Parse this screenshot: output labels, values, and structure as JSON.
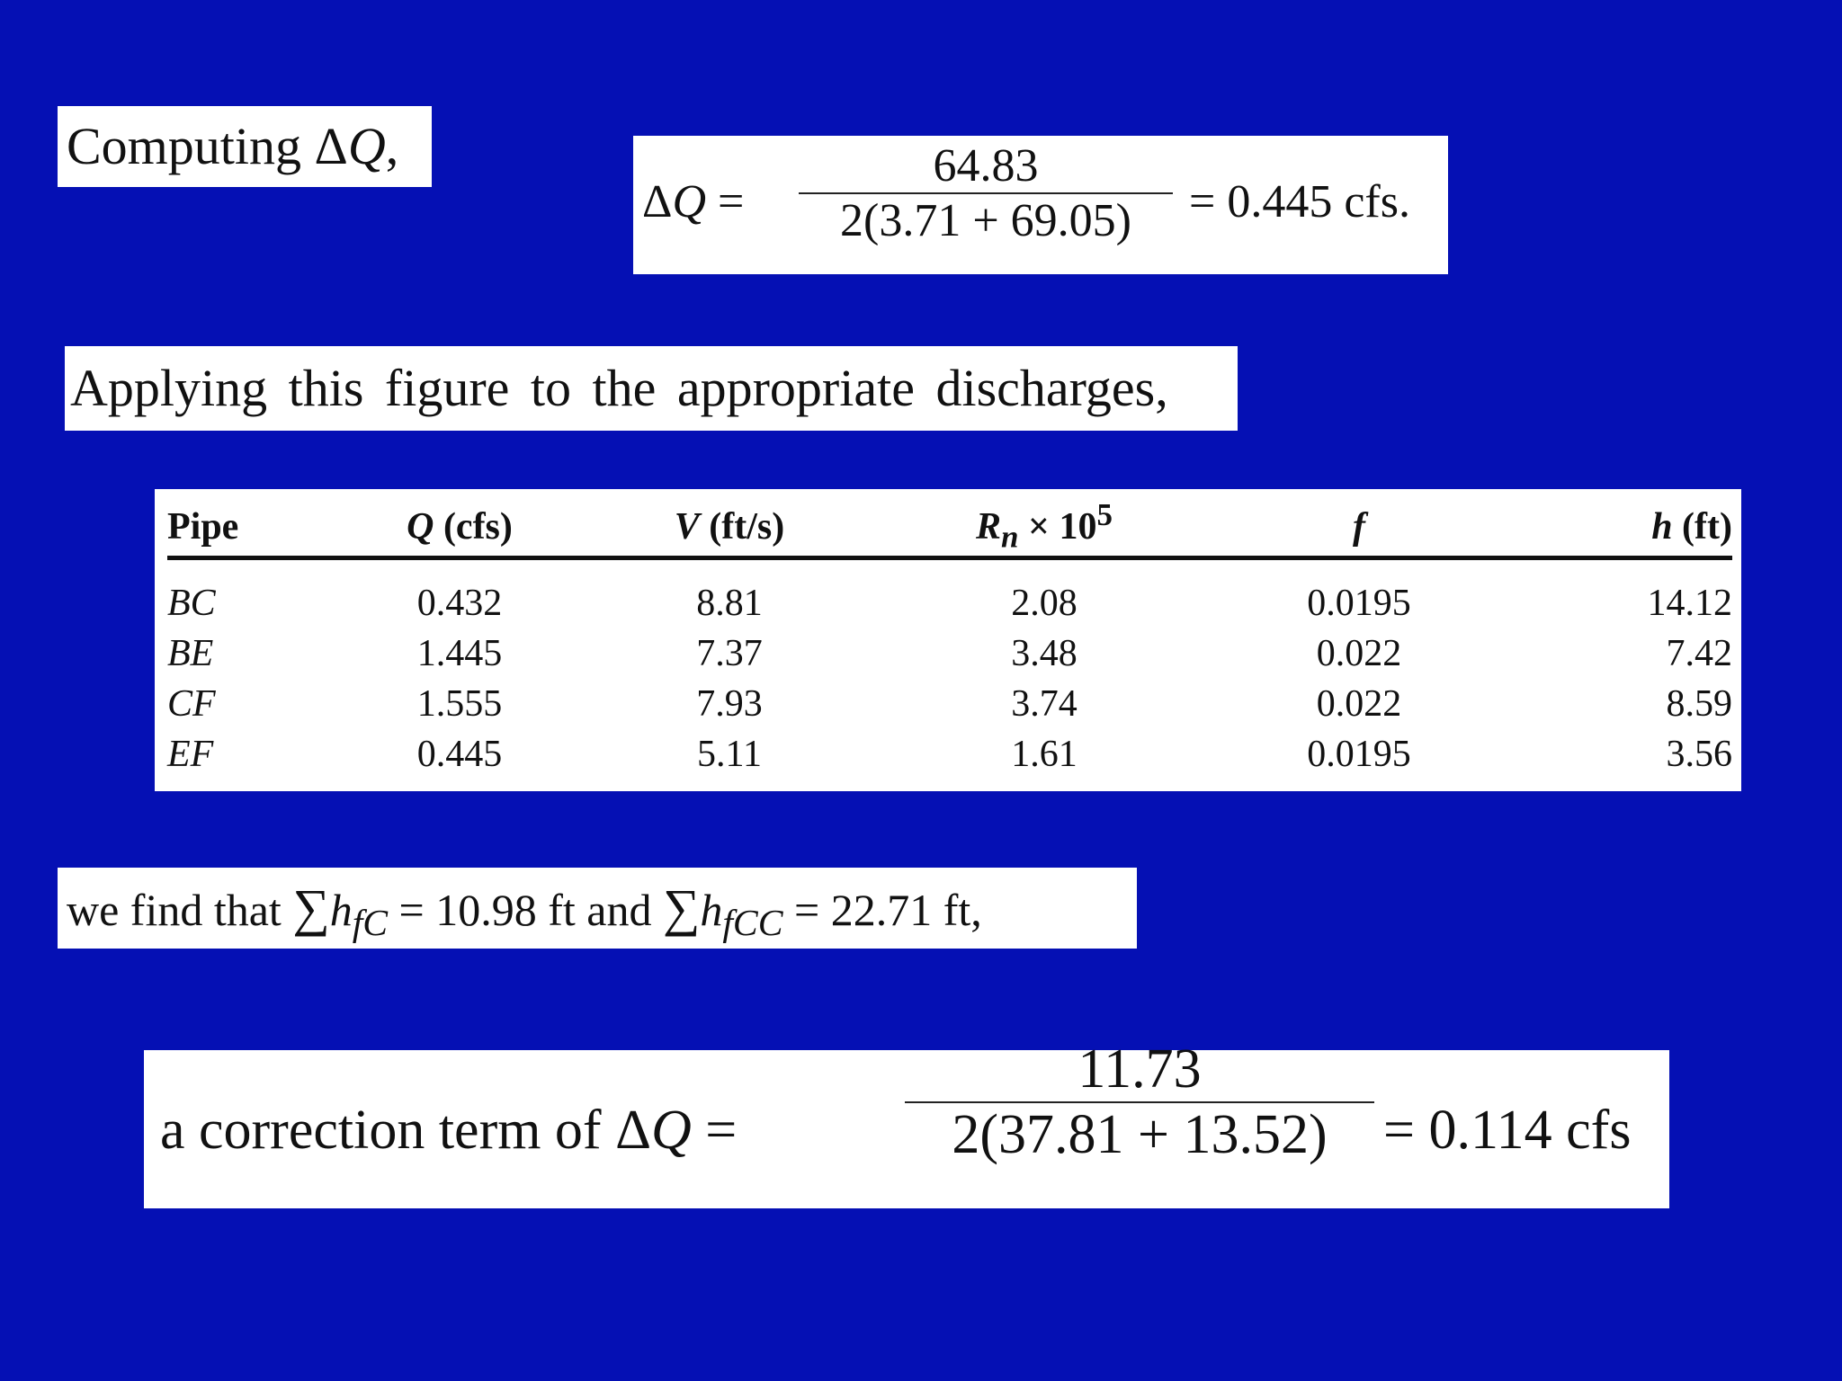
{
  "computing": {
    "text": "Computing Δ",
    "var": "Q",
    "comma": ","
  },
  "eq1": {
    "lhs_delta": "Δ",
    "lhs_var": "Q",
    "eq": "=",
    "numerator": "64.83",
    "denominator": "2(3.71  +  69.05)",
    "result": "=  0.445 cfs."
  },
  "applying": {
    "text": "Applying this figure to the appropriate discharges,"
  },
  "table": {
    "headers": {
      "pipe": "Pipe",
      "q_var": "Q",
      "q_unit": " (cfs)",
      "v_var": "V",
      "v_unit": " (ft/s)",
      "r_var": "R",
      "r_sub": "n",
      "r_times": " × 10",
      "r_sup": "5",
      "f": "f",
      "h_var": "h",
      "h_unit": " (ft)"
    },
    "rows": [
      {
        "pipe": "BC",
        "q": "0.432",
        "v": "8.81",
        "rn": "2.08",
        "f": "0.0195",
        "h": "14.12"
      },
      {
        "pipe": "BE",
        "q": "1.445",
        "v": "7.37",
        "rn": "3.48",
        "f": "0.022",
        "h": "7.42"
      },
      {
        "pipe": "CF",
        "q": "1.555",
        "v": "7.93",
        "rn": "3.74",
        "f": "0.022",
        "h": "8.59"
      },
      {
        "pipe": "EF",
        "q": "0.445",
        "v": "5.11",
        "rn": "1.61",
        "f": "0.0195",
        "h": "3.56"
      }
    ]
  },
  "find": {
    "pre": "we find that ",
    "sigma": "∑",
    "h1": "h",
    "sub1": "fC",
    "mid": " =  10.98 ft and ",
    "h2": "h",
    "sub2": "fCC",
    "post": " = 22.71 ft,"
  },
  "eq2": {
    "pre": "a  correction  term  of  Δ",
    "var": "Q",
    "eq": "=",
    "numerator": "11.73",
    "denominator": "2(37.81  +  13.52)",
    "result": "=  0.114 cfs"
  }
}
